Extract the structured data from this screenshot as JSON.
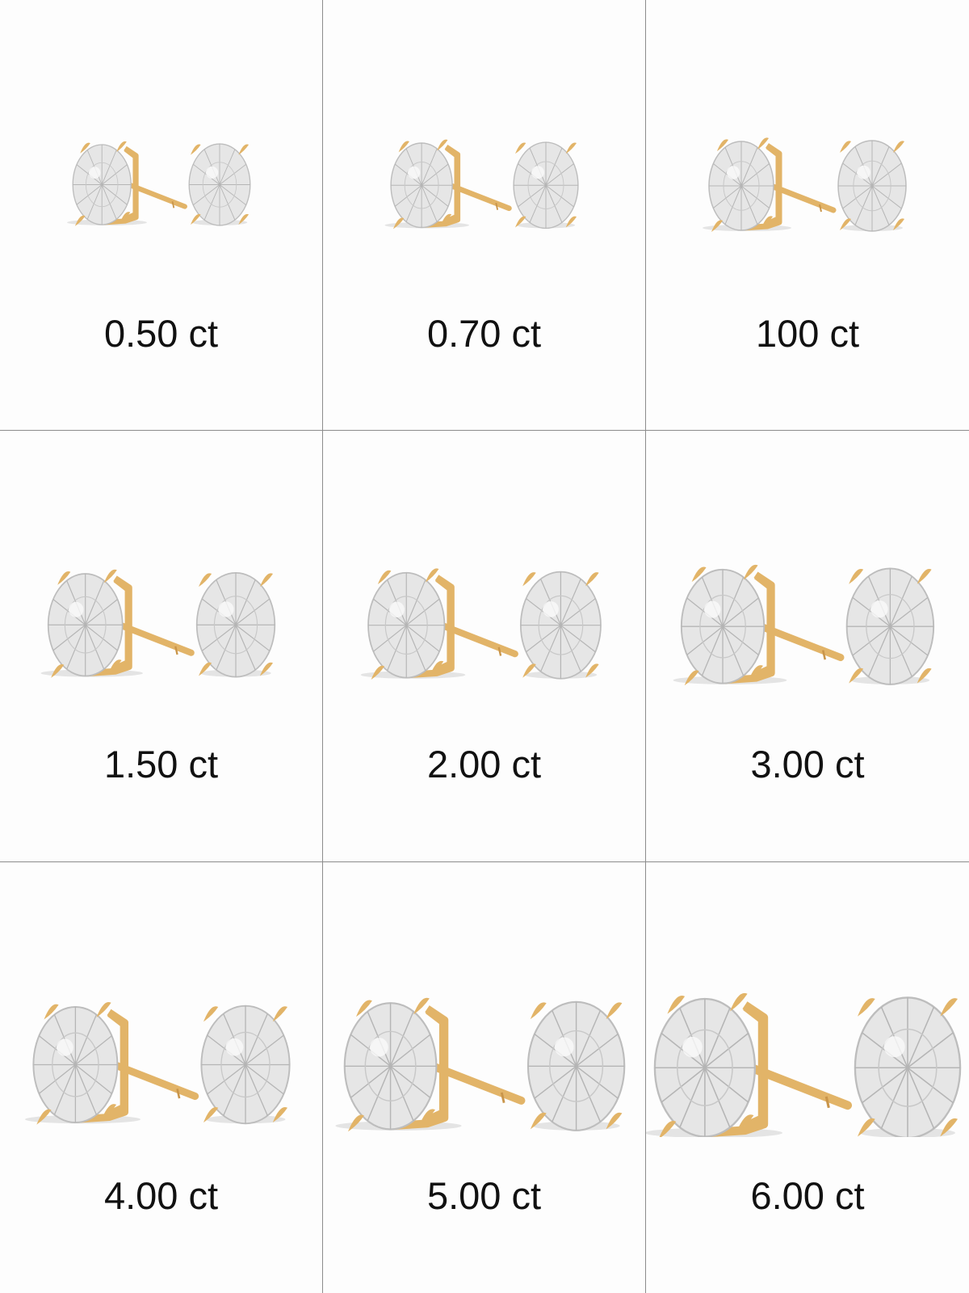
{
  "items": [
    {
      "label": "0.50 ct"
    },
    {
      "label": "0.70 ct"
    },
    {
      "label": "100 ct"
    },
    {
      "label": "1.50 ct"
    },
    {
      "label": "2.00 ct"
    },
    {
      "label": "3.00 ct"
    },
    {
      "label": "4.00 ct"
    },
    {
      "label": "5.00 ct"
    },
    {
      "label": "6.00 ct"
    }
  ],
  "colors": {
    "gold": "#e2b468",
    "diamond": "#e6e6e6",
    "divider": "#8c8c8c"
  }
}
